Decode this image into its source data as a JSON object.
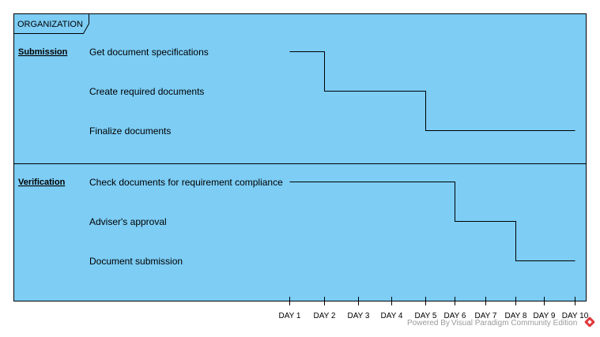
{
  "frame": {
    "title": "ORGANIZATION"
  },
  "colors": {
    "lane_fill": "#7dcdf5",
    "line": "#000000"
  },
  "days": [
    "DAY 1",
    "DAY 2",
    "DAY 3",
    "DAY 4",
    "DAY 5",
    "DAY 6",
    "DAY 7",
    "DAY 8",
    "DAY 9",
    "DAY 10"
  ],
  "lanes": [
    {
      "name": "Submission",
      "tasks": [
        {
          "label": "Get document specifications",
          "start_day": 1,
          "end_day": 2
        },
        {
          "label": "Create required documents",
          "start_day": 2,
          "end_day": 5
        },
        {
          "label": "Finalize documents",
          "start_day": 5,
          "end_day": 10
        }
      ]
    },
    {
      "name": "Verification",
      "tasks": [
        {
          "label": "Check documents for requirement compliance",
          "start_day": 1,
          "end_day": 6
        },
        {
          "label": "Adviser's approval",
          "start_day": 6,
          "end_day": 8
        },
        {
          "label": "Document submission",
          "start_day": 8,
          "end_day": 10
        }
      ]
    }
  ],
  "footer": {
    "watermark": "Powered By Visual Paradigm Community Edition",
    "logo_icon": "visual-paradigm-logo-icon"
  }
}
